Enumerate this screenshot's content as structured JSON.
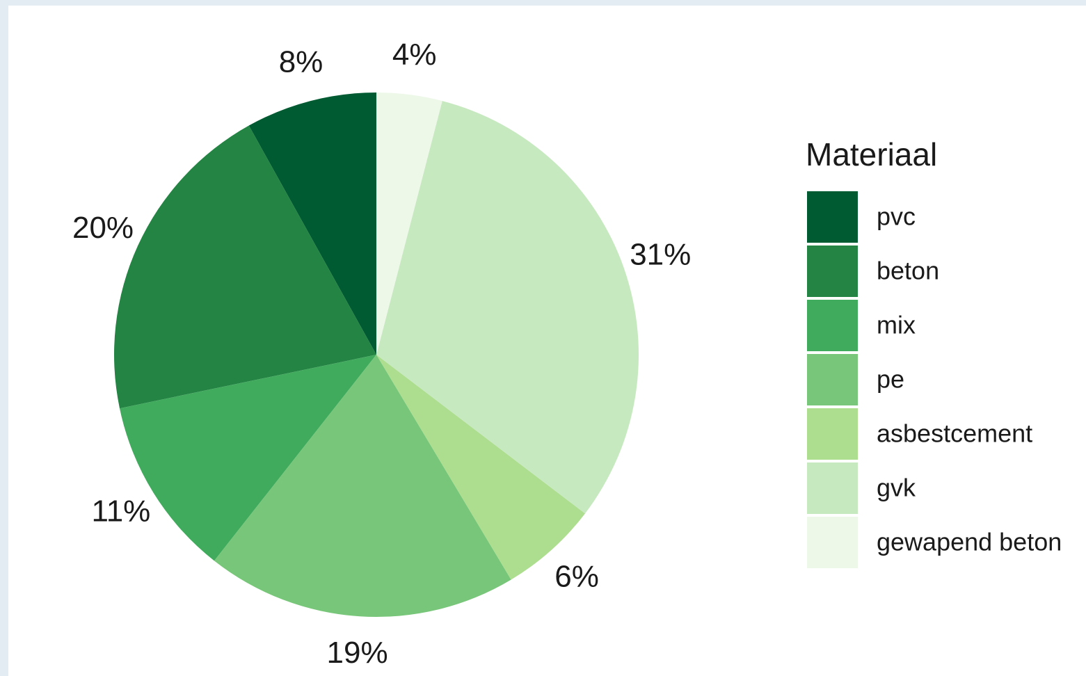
{
  "chart_data": {
    "type": "pie",
    "legend_title": "Materiaal",
    "categories": [
      "pvc",
      "beton",
      "mix",
      "pe",
      "asbestcement",
      "gvk",
      "gewapend beton"
    ],
    "values": [
      8,
      20,
      11,
      19,
      6,
      31,
      4
    ],
    "value_labels": [
      "8%",
      "20%",
      "11%",
      "19%",
      "6%",
      "31%",
      "4%"
    ],
    "colors": [
      "#005a32",
      "#238443",
      "#41ab5d",
      "#78c679",
      "#addd8e",
      "#c7e9c0",
      "#edf8e9"
    ],
    "direction": "counterclockwise",
    "legend": "right"
  }
}
